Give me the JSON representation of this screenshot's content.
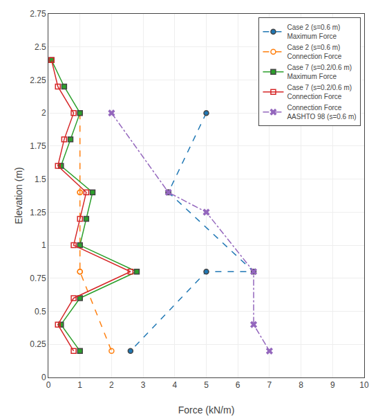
{
  "chart_data": {
    "type": "line",
    "xlabel": "Force (kN/m)",
    "ylabel": "Elevation (m)",
    "xlim": [
      0,
      10
    ],
    "ylim": [
      0,
      2.75
    ],
    "xticks": [
      0,
      1,
      2,
      3,
      4,
      5,
      6,
      7,
      8,
      9,
      10
    ],
    "yticks": [
      0,
      0.25,
      0.5,
      0.75,
      1.0,
      1.25,
      1.5,
      1.75,
      2.0,
      2.25,
      2.5,
      2.75
    ],
    "grid": true,
    "legend": "upper right",
    "series": [
      {
        "name": "Case 2 (s=0.6 m)\nMaximum Force",
        "marker": "circle",
        "line_style": "dash",
        "x": [
          5.0,
          3.8,
          3.8,
          6.5,
          5.0,
          2.6
        ],
        "values": [
          2.0,
          1.4,
          1.4,
          0.8,
          0.8,
          0.2
        ]
      },
      {
        "name": "Case 2 (s=0.6 m)\nConnection Force",
        "marker": "circle-open",
        "line_style": "dash",
        "x": [
          1.0,
          1.0,
          1.0,
          1.0,
          1.0,
          2.0
        ],
        "values": [
          2.0,
          1.4,
          1.4,
          0.8,
          0.8,
          0.2
        ]
      },
      {
        "name": "Case 7 (s=0.2/0.6 m)\nMaximum Force",
        "marker": "square",
        "line_style": "solid",
        "x": [
          0.1,
          0.5,
          1.0,
          0.7,
          0.4,
          1.4,
          1.2,
          1.0,
          2.8,
          1.0,
          0.4,
          1.0
        ],
        "values": [
          2.4,
          2.2,
          2.0,
          1.8,
          1.6,
          1.4,
          1.2,
          1.0,
          0.8,
          0.6,
          0.4,
          0.2
        ]
      },
      {
        "name": "Case 7 (s=0.2/0.6 m)\nConnection Force",
        "marker": "square-open",
        "line_style": "solid",
        "x": [
          0.1,
          0.3,
          0.8,
          0.5,
          0.3,
          1.2,
          1.0,
          0.8,
          2.6,
          0.8,
          0.3,
          0.8
        ],
        "values": [
          2.4,
          2.2,
          2.0,
          1.8,
          1.6,
          1.4,
          1.2,
          1.0,
          0.8,
          0.6,
          0.4,
          0.2
        ]
      },
      {
        "name": "Connection Force\nAASHTO 98 (s=0.6 m)",
        "marker": "x",
        "line_style": "dashdot",
        "x": [
          2.0,
          3.8,
          5.0,
          6.5,
          6.5,
          7.0
        ],
        "values": [
          2.0,
          1.4,
          1.25,
          0.8,
          0.4,
          0.2
        ]
      }
    ]
  }
}
